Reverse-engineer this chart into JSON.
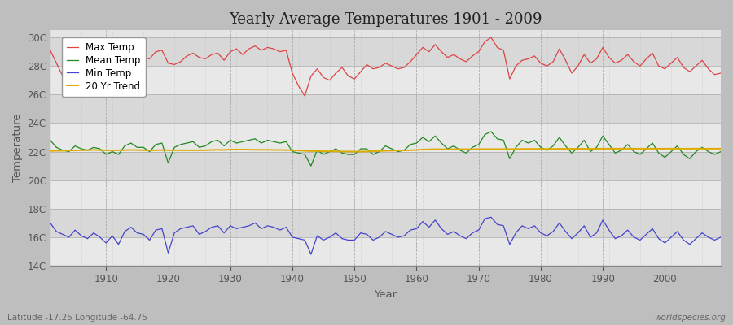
{
  "title": "Yearly Average Temperatures 1901 - 2009",
  "xlabel": "Year",
  "ylabel": "Temperature",
  "footnote_left": "Latitude -17.25 Longitude -64.75",
  "footnote_right": "worldspecies.org",
  "fig_bg_color": "#c8c8c8",
  "plot_bg_color": "#e8e8e8",
  "band_color_light": "#e8e8e8",
  "band_color_dark": "#d8d8d8",
  "years": [
    1901,
    1902,
    1903,
    1904,
    1905,
    1906,
    1907,
    1908,
    1909,
    1910,
    1911,
    1912,
    1913,
    1914,
    1915,
    1916,
    1917,
    1918,
    1919,
    1920,
    1921,
    1922,
    1923,
    1924,
    1925,
    1926,
    1927,
    1928,
    1929,
    1930,
    1931,
    1932,
    1933,
    1934,
    1935,
    1936,
    1937,
    1938,
    1939,
    1940,
    1941,
    1942,
    1943,
    1944,
    1945,
    1946,
    1947,
    1948,
    1949,
    1950,
    1951,
    1952,
    1953,
    1954,
    1955,
    1956,
    1957,
    1958,
    1959,
    1960,
    1961,
    1962,
    1963,
    1964,
    1965,
    1966,
    1967,
    1968,
    1969,
    1970,
    1971,
    1972,
    1973,
    1974,
    1975,
    1976,
    1977,
    1978,
    1979,
    1980,
    1981,
    1982,
    1983,
    1984,
    1985,
    1986,
    1987,
    1988,
    1989,
    1990,
    1991,
    1992,
    1993,
    1994,
    1995,
    1996,
    1997,
    1998,
    1999,
    2000,
    2001,
    2002,
    2003,
    2004,
    2005,
    2006,
    2007,
    2008,
    2009
  ],
  "max_temp": [
    29.1,
    28.2,
    27.3,
    27.5,
    27.8,
    28.4,
    28.6,
    28.9,
    28.5,
    27.1,
    27.4,
    28.2,
    28.5,
    28.8,
    28.3,
    28.6,
    28.5,
    29.0,
    29.1,
    28.2,
    28.1,
    28.3,
    28.7,
    28.9,
    28.6,
    28.5,
    28.8,
    28.9,
    28.4,
    29.0,
    29.2,
    28.8,
    29.2,
    29.4,
    29.1,
    29.3,
    29.2,
    29.0,
    29.1,
    27.5,
    26.6,
    25.9,
    27.3,
    27.8,
    27.2,
    27.0,
    27.5,
    27.9,
    27.3,
    27.1,
    27.6,
    28.1,
    27.8,
    27.9,
    28.2,
    28.0,
    27.8,
    27.9,
    28.3,
    28.8,
    29.3,
    29.0,
    29.5,
    29.0,
    28.6,
    28.8,
    28.5,
    28.3,
    28.7,
    29.0,
    29.7,
    30.0,
    29.3,
    29.1,
    27.1,
    28.0,
    28.4,
    28.5,
    28.7,
    28.2,
    28.0,
    28.3,
    29.2,
    28.4,
    27.5,
    28.0,
    28.8,
    28.2,
    28.5,
    29.3,
    28.6,
    28.2,
    28.4,
    28.8,
    28.3,
    28.0,
    28.5,
    28.9,
    28.0,
    27.8,
    28.2,
    28.6,
    27.9,
    27.6,
    28.0,
    28.4,
    27.8,
    27.4,
    27.5
  ],
  "mean_temp": [
    22.8,
    22.3,
    22.1,
    22.0,
    22.4,
    22.2,
    22.1,
    22.3,
    22.2,
    21.8,
    22.0,
    21.8,
    22.4,
    22.6,
    22.3,
    22.3,
    22.0,
    22.5,
    22.6,
    21.2,
    22.3,
    22.5,
    22.6,
    22.7,
    22.3,
    22.4,
    22.7,
    22.8,
    22.4,
    22.8,
    22.6,
    22.7,
    22.8,
    22.9,
    22.6,
    22.8,
    22.7,
    22.6,
    22.7,
    22.0,
    21.9,
    21.8,
    21.0,
    22.1,
    21.8,
    22.0,
    22.2,
    21.9,
    21.8,
    21.8,
    22.2,
    22.2,
    21.8,
    22.0,
    22.4,
    22.2,
    22.0,
    22.1,
    22.5,
    22.6,
    23.0,
    22.7,
    23.1,
    22.6,
    22.2,
    22.4,
    22.1,
    21.9,
    22.3,
    22.5,
    23.2,
    23.4,
    22.9,
    22.8,
    21.5,
    22.3,
    22.8,
    22.6,
    22.8,
    22.3,
    22.1,
    22.4,
    23.0,
    22.4,
    21.9,
    22.3,
    22.8,
    22.0,
    22.3,
    23.1,
    22.5,
    21.9,
    22.1,
    22.5,
    22.0,
    21.8,
    22.2,
    22.6,
    21.9,
    21.6,
    22.0,
    22.4,
    21.8,
    21.5,
    22.0,
    22.3,
    22.0,
    21.8,
    22.0
  ],
  "min_temp": [
    17.0,
    16.4,
    16.2,
    16.0,
    16.5,
    16.1,
    15.9,
    16.3,
    16.0,
    15.6,
    16.1,
    15.5,
    16.4,
    16.7,
    16.3,
    16.2,
    15.8,
    16.5,
    16.6,
    14.9,
    16.3,
    16.6,
    16.7,
    16.8,
    16.2,
    16.4,
    16.7,
    16.8,
    16.3,
    16.8,
    16.6,
    16.7,
    16.8,
    17.0,
    16.6,
    16.8,
    16.7,
    16.5,
    16.7,
    16.0,
    15.9,
    15.8,
    14.8,
    16.1,
    15.8,
    16.0,
    16.3,
    15.9,
    15.8,
    15.8,
    16.3,
    16.2,
    15.8,
    16.0,
    16.4,
    16.2,
    16.0,
    16.1,
    16.5,
    16.6,
    17.1,
    16.7,
    17.2,
    16.6,
    16.2,
    16.4,
    16.1,
    15.9,
    16.3,
    16.5,
    17.3,
    17.4,
    16.9,
    16.8,
    15.5,
    16.3,
    16.8,
    16.6,
    16.8,
    16.3,
    16.1,
    16.4,
    17.0,
    16.4,
    15.9,
    16.3,
    16.8,
    16.0,
    16.3,
    17.2,
    16.5,
    15.9,
    16.1,
    16.5,
    16.0,
    15.8,
    16.2,
    16.6,
    15.9,
    15.6,
    16.0,
    16.4,
    15.8,
    15.5,
    15.9,
    16.3,
    16.0,
    15.8,
    16.0
  ],
  "trend": [
    22.05,
    22.06,
    22.07,
    22.08,
    22.09,
    22.1,
    22.11,
    22.12,
    22.11,
    22.1,
    22.09,
    22.1,
    22.11,
    22.12,
    22.11,
    22.1,
    22.09,
    22.1,
    22.11,
    22.1,
    22.1,
    22.1,
    22.1,
    22.1,
    22.1,
    22.1,
    22.12,
    22.13,
    22.12,
    22.15,
    22.15,
    22.15,
    22.14,
    22.13,
    22.13,
    22.13,
    22.12,
    22.12,
    22.11,
    22.1,
    22.08,
    22.06,
    22.04,
    22.04,
    22.03,
    22.02,
    22.02,
    22.01,
    22.01,
    22.0,
    22.0,
    22.01,
    22.03,
    22.04,
    22.06,
    22.07,
    22.08,
    22.09,
    22.1,
    22.12,
    22.15,
    22.16,
    22.17,
    22.17,
    22.16,
    22.17,
    22.17,
    22.17,
    22.17,
    22.18,
    22.18,
    22.18,
    22.18,
    22.18,
    22.18,
    22.18,
    22.19,
    22.19,
    22.19,
    22.19,
    22.19,
    22.19,
    22.2,
    22.2,
    22.2,
    22.2,
    22.2,
    22.2,
    22.2,
    22.21,
    22.21,
    22.21,
    22.21,
    22.21,
    22.21,
    22.21,
    22.21,
    22.21,
    22.21,
    22.21,
    22.21,
    22.21,
    22.21,
    22.21,
    22.21,
    22.21,
    22.21,
    22.21,
    22.21
  ],
  "max_color": "#dd4444",
  "mean_color": "#228822",
  "min_color": "#4444cc",
  "trend_color": "#ddaa00",
  "ylim": [
    14,
    30.5
  ],
  "yticks": [
    14,
    16,
    18,
    20,
    22,
    24,
    26,
    28,
    30
  ],
  "ytick_labels": [
    "14C",
    "16C",
    "18C",
    "20C",
    "22C",
    "24C",
    "26C",
    "28C",
    "30C"
  ],
  "xlim": [
    1901,
    2009
  ],
  "xticks": [
    1910,
    1920,
    1930,
    1940,
    1950,
    1960,
    1970,
    1980,
    1990,
    2000
  ]
}
